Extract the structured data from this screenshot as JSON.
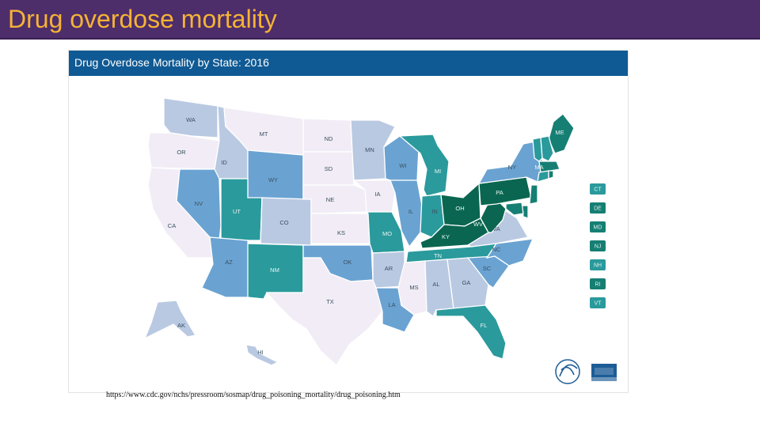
{
  "slide": {
    "title": "Drug overdose mortality",
    "source": "https://www.cdc.gov/nchs/pressroom/sosmap/drug_poisoning_mortality/drug_poisoning.htm"
  },
  "map": {
    "title": "Drug Overdose Mortality by State: 2016",
    "category_colors": {
      "c1": "#f1ecf5",
      "c2": "#b9c9e2",
      "c3": "#6aa3d2",
      "c4": "#2a9a9c",
      "c5": "#167f74",
      "c6": "#0a6650"
    },
    "states": [
      {
        "abbr": "WA",
        "cat": "c2"
      },
      {
        "abbr": "OR",
        "cat": "c1"
      },
      {
        "abbr": "CA",
        "cat": "c1"
      },
      {
        "abbr": "ID",
        "cat": "c2"
      },
      {
        "abbr": "NV",
        "cat": "c3"
      },
      {
        "abbr": "MT",
        "cat": "c1"
      },
      {
        "abbr": "WY",
        "cat": "c3"
      },
      {
        "abbr": "UT",
        "cat": "c4"
      },
      {
        "abbr": "AZ",
        "cat": "c3"
      },
      {
        "abbr": "CO",
        "cat": "c2"
      },
      {
        "abbr": "NM",
        "cat": "c4"
      },
      {
        "abbr": "ND",
        "cat": "c1"
      },
      {
        "abbr": "SD",
        "cat": "c1"
      },
      {
        "abbr": "NE",
        "cat": "c1"
      },
      {
        "abbr": "KS",
        "cat": "c1"
      },
      {
        "abbr": "OK",
        "cat": "c3"
      },
      {
        "abbr": "TX",
        "cat": "c1"
      },
      {
        "abbr": "MN",
        "cat": "c2"
      },
      {
        "abbr": "IA",
        "cat": "c1"
      },
      {
        "abbr": "MO",
        "cat": "c4"
      },
      {
        "abbr": "AR",
        "cat": "c2"
      },
      {
        "abbr": "LA",
        "cat": "c3"
      },
      {
        "abbr": "WI",
        "cat": "c3"
      },
      {
        "abbr": "IL",
        "cat": "c3"
      },
      {
        "abbr": "MI",
        "cat": "c4"
      },
      {
        "abbr": "IN",
        "cat": "c4"
      },
      {
        "abbr": "OH",
        "cat": "c6"
      },
      {
        "abbr": "KY",
        "cat": "c6"
      },
      {
        "abbr": "TN",
        "cat": "c4"
      },
      {
        "abbr": "MS",
        "cat": "c1"
      },
      {
        "abbr": "AL",
        "cat": "c2"
      },
      {
        "abbr": "GA",
        "cat": "c2"
      },
      {
        "abbr": "FL",
        "cat": "c4"
      },
      {
        "abbr": "SC",
        "cat": "c3"
      },
      {
        "abbr": "NC",
        "cat": "c3"
      },
      {
        "abbr": "VA",
        "cat": "c2"
      },
      {
        "abbr": "WV",
        "cat": "c6"
      },
      {
        "abbr": "PA",
        "cat": "c6"
      },
      {
        "abbr": "NY",
        "cat": "c3"
      },
      {
        "abbr": "ME",
        "cat": "c5"
      },
      {
        "abbr": "MA",
        "cat": "c5"
      },
      {
        "abbr": "AK",
        "cat": "c2"
      },
      {
        "abbr": "HI",
        "cat": "c2"
      }
    ],
    "legend": [
      {
        "abbr": "CT",
        "cat": "c4"
      },
      {
        "abbr": "DE",
        "cat": "c5"
      },
      {
        "abbr": "MD",
        "cat": "c5"
      },
      {
        "abbr": "NJ",
        "cat": "c5"
      },
      {
        "abbr": "NH",
        "cat": "c4"
      },
      {
        "abbr": "RI",
        "cat": "c5"
      },
      {
        "abbr": "VT",
        "cat": "c4"
      }
    ]
  }
}
